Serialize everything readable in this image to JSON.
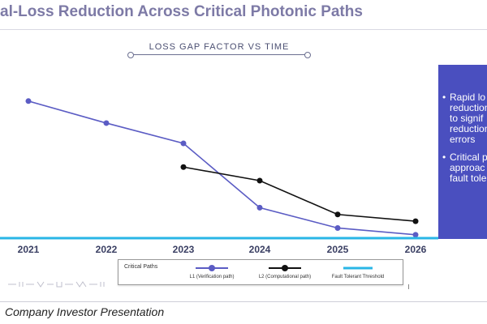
{
  "slide": {
    "title": "al-Loss Reduction Across Critical Photonic Paths",
    "footer": "Company Investor Presentation"
  },
  "chart_header": "LOSS GAP FACTOR VS TIME",
  "side_panel": {
    "bullets": [
      "Rapid lo\nreduction\nto signif\nreduction\nerrors",
      "Critical p\napproac\nfault tole"
    ]
  },
  "legend": {
    "title": "Critical Paths",
    "items": [
      {
        "label": "L1 (Verification path)",
        "marker": "circle",
        "color": "#5b5cc4"
      },
      {
        "label": "L2 (Computational path)",
        "marker": "circle",
        "color": "#111111"
      },
      {
        "label": "Fault Tolerant Threshold",
        "marker": "none",
        "color": "#29b6e6"
      }
    ]
  },
  "chart_data": {
    "type": "line",
    "title": "LOSS GAP FACTOR VS TIME",
    "categories": [
      "2021",
      "2022",
      "2023",
      "2024",
      "2025",
      "2026"
    ],
    "ylim": [
      0,
      9
    ],
    "grid": false,
    "legend_position": "bottom",
    "series": [
      {
        "name": "L1 (Verification path)",
        "color": "#5b5cc4",
        "values": [
          8.1,
          6.8,
          5.6,
          1.8,
          0.6,
          0.2
        ]
      },
      {
        "name": "L2 (Computational path)",
        "color": "#111111",
        "values": [
          null,
          null,
          4.2,
          3.4,
          1.4,
          1.0
        ]
      },
      {
        "name": "Fault Tolerant Threshold",
        "color": "#29b6e6",
        "values": [
          0,
          0,
          0,
          0,
          0,
          0
        ]
      }
    ]
  }
}
